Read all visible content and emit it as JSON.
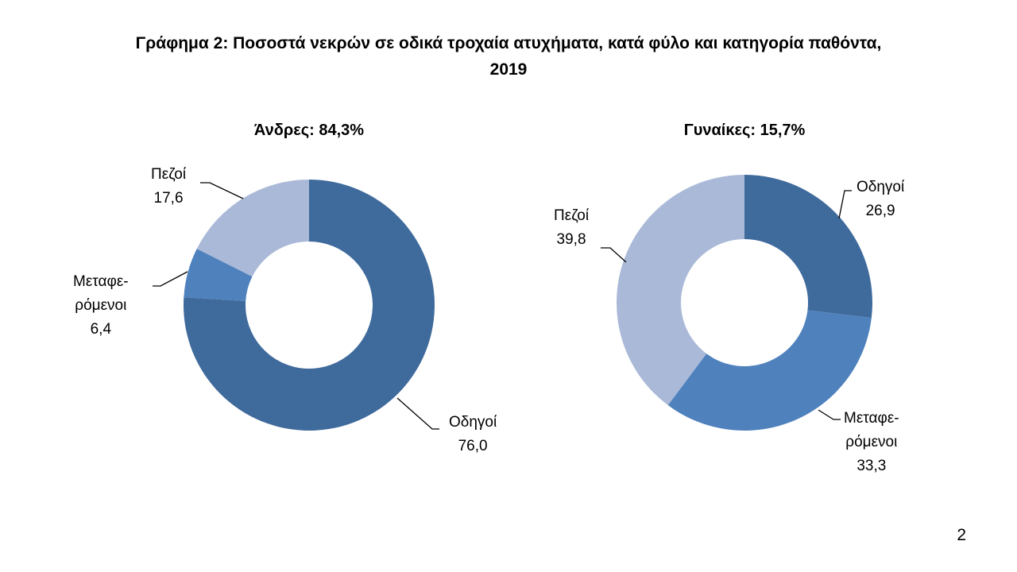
{
  "title_line1": "Γράφημα 2: Ποσοστά νεκρών σε οδικά τροχαία ατυχήματα, κατά φύλο και κατηγορία παθόντα,",
  "title_line2": "2019",
  "page_number": "2",
  "chart_data": [
    {
      "type": "pie",
      "subtitle": "Άνδρες: 84,3%",
      "categories": [
        "Οδηγοί",
        "Μεταφερόμενοι",
        "Πεζοί"
      ],
      "label_lines": [
        [
          "Οδηγοί"
        ],
        [
          "Μεταφε-",
          "ρόμενοι"
        ],
        [
          "Πεζοί"
        ]
      ],
      "values": [
        76.0,
        6.4,
        17.6
      ],
      "value_labels": [
        "76,0",
        "6,4",
        "17,6"
      ],
      "colors": [
        "#3f6a9c",
        "#4f81bd",
        "#a9b9d7"
      ]
    },
    {
      "type": "pie",
      "subtitle": "Γυναίκες: 15,7%",
      "categories": [
        "Οδηγοί",
        "Μεταφερόμενοι",
        "Πεζοί"
      ],
      "label_lines": [
        [
          "Οδηγοί"
        ],
        [
          "Μεταφε-",
          "ρόμενοι"
        ],
        [
          "Πεζοί"
        ]
      ],
      "values": [
        26.9,
        33.3,
        39.8
      ],
      "value_labels": [
        "26,9",
        "33,3",
        "39,8"
      ],
      "colors": [
        "#3f6a9c",
        "#4f81bd",
        "#a9b9d7"
      ]
    }
  ]
}
